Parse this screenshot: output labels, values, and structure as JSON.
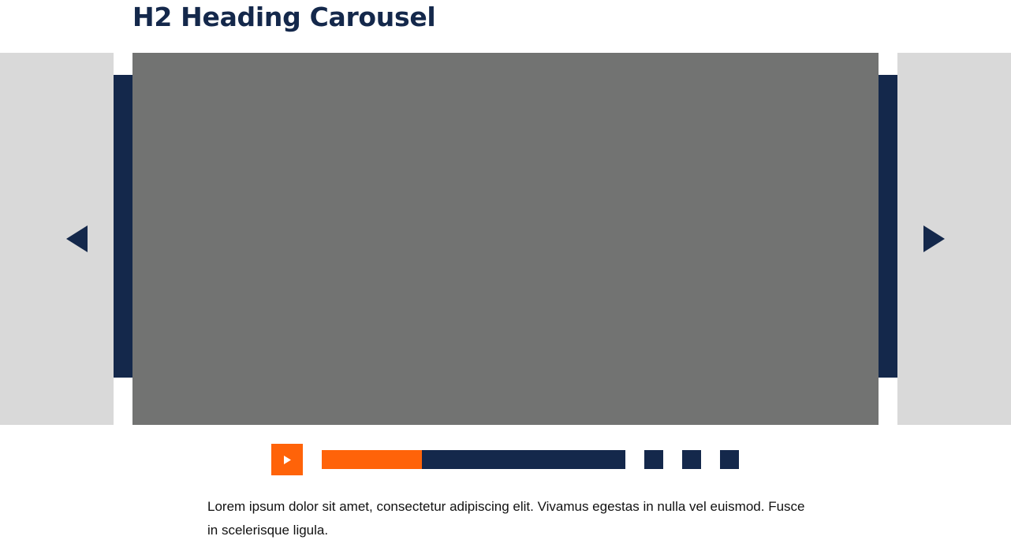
{
  "heading": "H2 Heading Carousel",
  "carousel": {
    "prev_icon": "triangle-left-icon",
    "next_icon": "triangle-right-icon",
    "play_icon": "play-icon",
    "progress": 0.33,
    "page_count": 3
  },
  "caption": "Lorem ipsum dolor sit amet, consectetur adipiscing elit. Vivamus egestas in nulla vel euismod. Fusce in scelerisque ligula.",
  "colors": {
    "navy": "#14284b",
    "orange": "#ff6309",
    "slide_gray": "#727372",
    "panel_gray": "#d9d9d9"
  }
}
